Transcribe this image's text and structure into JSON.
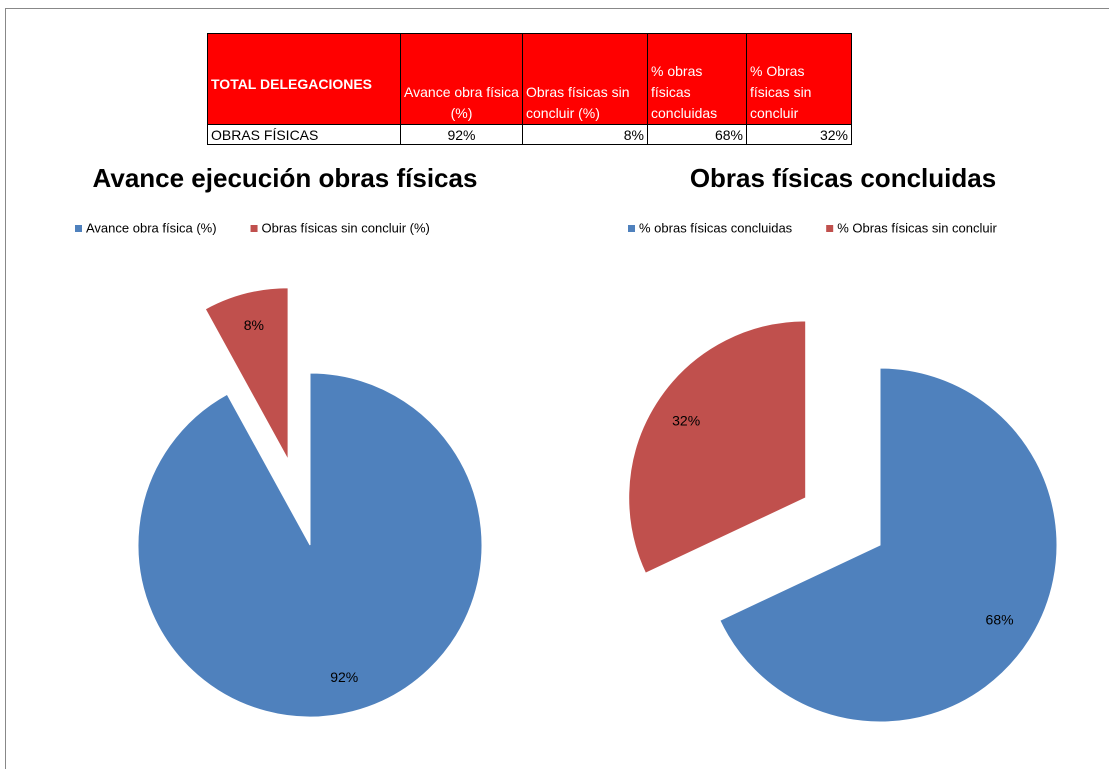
{
  "table": {
    "header": [
      "TOTAL DELEGACIONES",
      "Avance obra física (%)",
      "Obras físicas sin concluir (%)",
      "% obras físicas concluidas",
      "% Obras físicas sin concluir"
    ],
    "rows": [
      [
        "OBRAS FÍSICAS",
        "92%",
        "8%",
        "68%",
        "32%"
      ]
    ]
  },
  "chart_data": [
    {
      "type": "pie",
      "title": "Avance ejecución obras físicas",
      "categories": [
        "Avance obra física (%)",
        "Obras físicas sin concluir (%)"
      ],
      "values": [
        92,
        8
      ],
      "value_labels": [
        "92%",
        "8%"
      ],
      "colors": [
        "#4f81bd",
        "#c0504d"
      ],
      "legend": "top"
    },
    {
      "type": "pie",
      "title": "Obras físicas concluidas",
      "categories": [
        "% obras físicas concluidas",
        "% Obras físicas sin concluir"
      ],
      "values": [
        68,
        32
      ],
      "value_labels": [
        "68%",
        "32%"
      ],
      "colors": [
        "#4f81bd",
        "#c0504d"
      ],
      "legend": "top"
    }
  ]
}
